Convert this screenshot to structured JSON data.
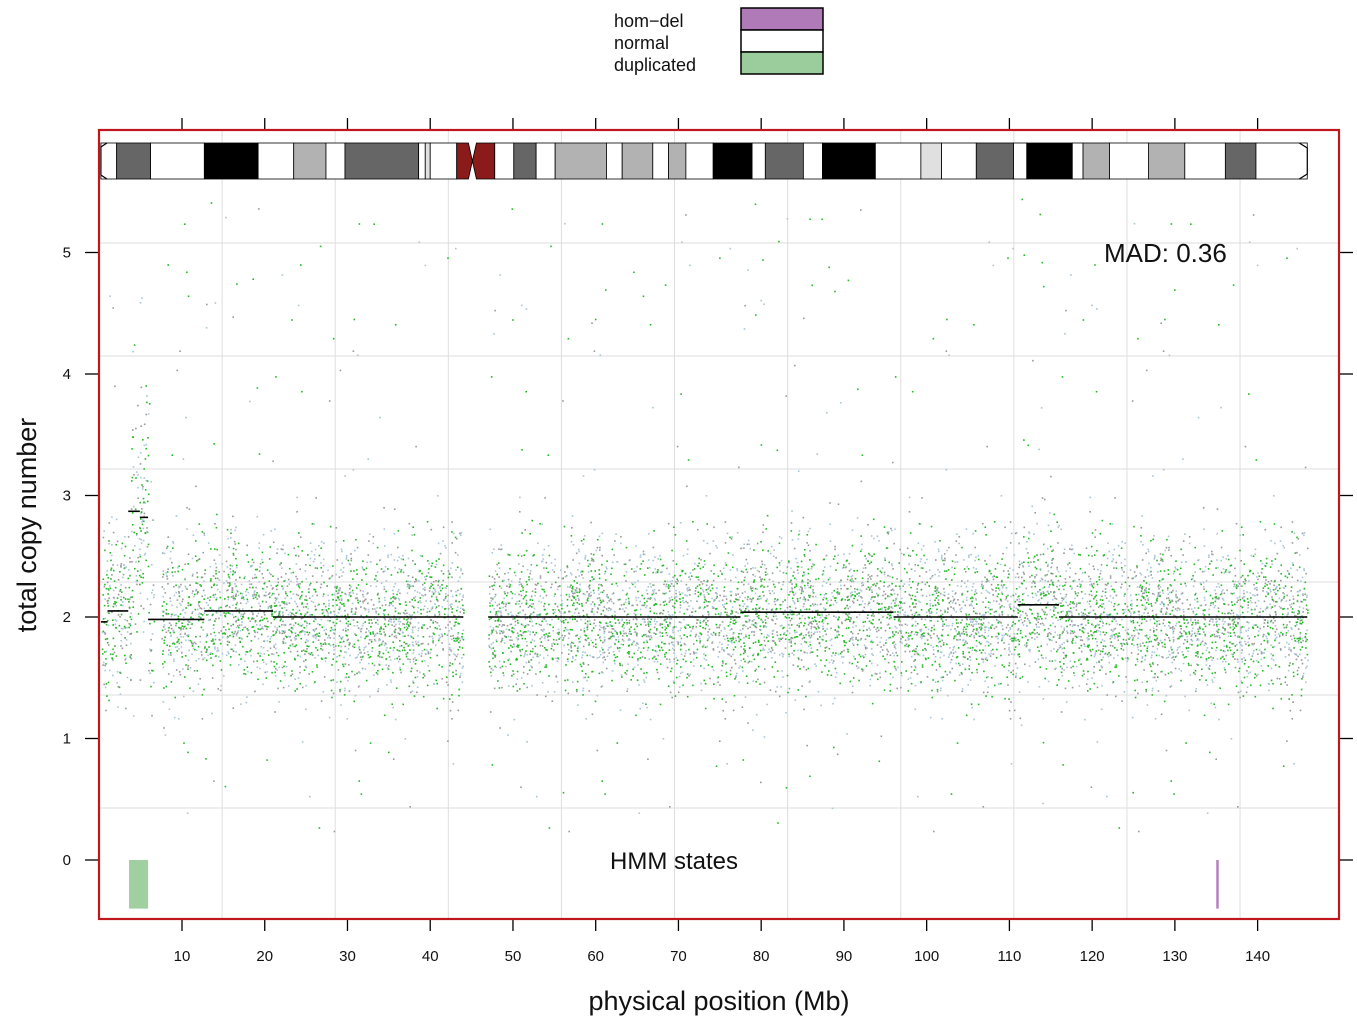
{
  "chart_data": {
    "type": "scatter",
    "xlabel": "physical position (Mb)",
    "ylabel": "total copy number",
    "xlim": [
      0,
      146
    ],
    "ylim": [
      -0.45,
      5.85
    ],
    "x_ticks": [
      10,
      20,
      30,
      40,
      50,
      60,
      70,
      80,
      90,
      100,
      110,
      120,
      130,
      140
    ],
    "y_ticks": [
      0,
      1,
      2,
      3,
      4,
      5
    ],
    "x_tick_labels": [
      "10",
      "20",
      "30",
      "40",
      "50",
      "60",
      "70",
      "80",
      "90",
      "100",
      "110",
      "120",
      "130",
      "140"
    ],
    "y_tick_labels": [
      "0",
      "1",
      "2",
      "3",
      "4",
      "5"
    ],
    "grid": true,
    "annotations": {
      "mad": "MAD: 0.36",
      "hmm": "HMM states"
    },
    "legend": {
      "placement": "top",
      "entries": [
        {
          "label": "hom−del",
          "color": "#b07ab8"
        },
        {
          "label": "normal",
          "color": "#ffffff"
        },
        {
          "label": "duplicated",
          "color": "#9bcc9b"
        }
      ]
    },
    "colors": {
      "frame": "#c0171c",
      "points_gray": "#9a9a9a",
      "points_blue": "#a9c6d6",
      "points_green": "#22bb22",
      "segment": "#000000",
      "centromere": "#8b1a1a"
    },
    "segments": [
      {
        "x0": 0.2,
        "x1": 1.0,
        "y": 1.96
      },
      {
        "x0": 1.0,
        "x1": 3.5,
        "y": 2.05
      },
      {
        "x0": 3.5,
        "x1": 4.9,
        "y": 2.87
      },
      {
        "x0": 4.9,
        "x1": 5.9,
        "y": 2.82
      },
      {
        "x0": 5.9,
        "x1": 12.7,
        "y": 1.98
      },
      {
        "x0": 12.7,
        "x1": 21.0,
        "y": 2.05
      },
      {
        "x0": 21.0,
        "x1": 44.0,
        "y": 2.0
      },
      {
        "x0": 47.0,
        "x1": 77.5,
        "y": 2.0
      },
      {
        "x0": 77.5,
        "x1": 96.0,
        "y": 2.04
      },
      {
        "x0": 96.0,
        "x1": 111.0,
        "y": 2.0
      },
      {
        "x0": 111.0,
        "x1": 116.0,
        "y": 2.1
      },
      {
        "x0": 116.0,
        "x1": 146.0,
        "y": 2.0
      }
    ],
    "hmm_states": [
      {
        "state": "duplicated",
        "x0": 3.6,
        "x1": 5.9
      },
      {
        "state": "hom−del",
        "x0": 135.0,
        "x1": 135.3
      }
    ],
    "regions": [
      {
        "x0": 0.3,
        "x1": 3.8,
        "center": 2.05,
        "sd": 0.32,
        "weight": 0.08
      },
      {
        "x0": 3.8,
        "x1": 5.9,
        "center": 2.85,
        "sd": 0.5,
        "weight": 0.05
      },
      {
        "x0": 5.9,
        "x1": 6.6,
        "center": 1.9,
        "sd": 0.35,
        "weight": 0.01
      },
      {
        "x0": 7.5,
        "x1": 12.7,
        "center": 2.0,
        "sd": 0.3,
        "weight": 0.12
      },
      {
        "x0": 12.7,
        "x1": 21.0,
        "center": 2.05,
        "sd": 0.3,
        "weight": 0.19
      },
      {
        "x0": 21.0,
        "x1": 44.0,
        "center": 2.0,
        "sd": 0.3,
        "weight": 0.55
      },
      {
        "x0": 47.0,
        "x1": 77.5,
        "center": 2.0,
        "sd": 0.3,
        "weight": 0.72
      },
      {
        "x0": 77.5,
        "x1": 96.0,
        "center": 2.04,
        "sd": 0.3,
        "weight": 0.44
      },
      {
        "x0": 96.0,
        "x1": 111.0,
        "center": 2.0,
        "sd": 0.3,
        "weight": 0.36
      },
      {
        "x0": 111.0,
        "x1": 116.0,
        "center": 2.08,
        "sd": 0.3,
        "weight": 0.12
      },
      {
        "x0": 116.0,
        "x1": 146.0,
        "center": 2.0,
        "sd": 0.3,
        "weight": 0.72
      }
    ],
    "ideogram": [
      {
        "x0": 0.2,
        "x1": 2.1,
        "stain": "gneg"
      },
      {
        "x0": 2.1,
        "x1": 6.2,
        "stain": "gpos75"
      },
      {
        "x0": 6.2,
        "x1": 12.7,
        "stain": "gneg"
      },
      {
        "x0": 12.7,
        "x1": 19.2,
        "stain": "gpos100"
      },
      {
        "x0": 19.2,
        "x1": 23.5,
        "stain": "gneg"
      },
      {
        "x0": 23.5,
        "x1": 27.4,
        "stain": "gpos50"
      },
      {
        "x0": 27.4,
        "x1": 29.7,
        "stain": "gneg"
      },
      {
        "x0": 29.7,
        "x1": 38.6,
        "stain": "gpos75"
      },
      {
        "x0": 38.6,
        "x1": 39.4,
        "stain": "gneg"
      },
      {
        "x0": 39.4,
        "x1": 40.0,
        "stain": "gpos25"
      },
      {
        "x0": 40.0,
        "x1": 43.2,
        "stain": "gneg"
      },
      {
        "x0": 43.2,
        "x1": 45.1,
        "stain": "acen"
      },
      {
        "x0": 45.1,
        "x1": 47.8,
        "stain": "acen"
      },
      {
        "x0": 47.8,
        "x1": 50.1,
        "stain": "gneg"
      },
      {
        "x0": 50.1,
        "x1": 52.8,
        "stain": "gpos75"
      },
      {
        "x0": 52.8,
        "x1": 55.1,
        "stain": "gneg"
      },
      {
        "x0": 55.1,
        "x1": 61.3,
        "stain": "gpos50"
      },
      {
        "x0": 61.3,
        "x1": 63.2,
        "stain": "gneg"
      },
      {
        "x0": 63.2,
        "x1": 66.9,
        "stain": "gpos50"
      },
      {
        "x0": 66.9,
        "x1": 68.8,
        "stain": "gneg"
      },
      {
        "x0": 68.8,
        "x1": 70.9,
        "stain": "gpos50"
      },
      {
        "x0": 70.9,
        "x1": 74.2,
        "stain": "gneg"
      },
      {
        "x0": 74.2,
        "x1": 78.9,
        "stain": "gpos100"
      },
      {
        "x0": 78.9,
        "x1": 80.5,
        "stain": "gneg"
      },
      {
        "x0": 80.5,
        "x1": 85.1,
        "stain": "gpos75"
      },
      {
        "x0": 85.1,
        "x1": 87.4,
        "stain": "gneg"
      },
      {
        "x0": 87.4,
        "x1": 93.8,
        "stain": "gpos100"
      },
      {
        "x0": 93.8,
        "x1": 99.3,
        "stain": "gneg"
      },
      {
        "x0": 99.3,
        "x1": 101.8,
        "stain": "gpos25"
      },
      {
        "x0": 101.8,
        "x1": 106.0,
        "stain": "gneg"
      },
      {
        "x0": 106.0,
        "x1": 110.5,
        "stain": "gpos75"
      },
      {
        "x0": 110.5,
        "x1": 112.1,
        "stain": "gneg"
      },
      {
        "x0": 112.1,
        "x1": 117.6,
        "stain": "gpos100"
      },
      {
        "x0": 117.6,
        "x1": 118.9,
        "stain": "gneg"
      },
      {
        "x0": 118.9,
        "x1": 122.1,
        "stain": "gpos50"
      },
      {
        "x0": 122.1,
        "x1": 126.8,
        "stain": "gneg"
      },
      {
        "x0": 126.8,
        "x1": 131.2,
        "stain": "gpos50"
      },
      {
        "x0": 131.2,
        "x1": 136.1,
        "stain": "gneg"
      },
      {
        "x0": 136.1,
        "x1": 139.8,
        "stain": "gpos75"
      },
      {
        "x0": 139.8,
        "x1": 146.0,
        "stain": "gneg"
      }
    ]
  }
}
